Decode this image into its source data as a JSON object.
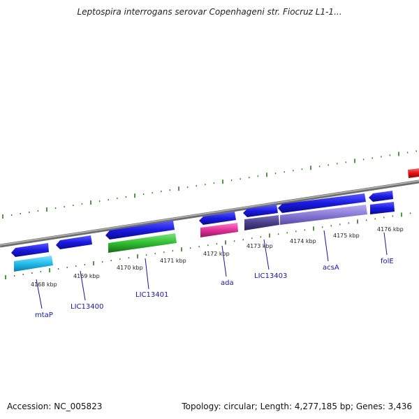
{
  "title": "Leptospira interrogans serovar Copenhageni str. Fiocruz L1-1...",
  "footer": {
    "accession": "Accession: NC_005823",
    "summary": "Topology: circular; Length: 4,277,185 bp; Genes: 3,436"
  },
  "kbp_labels": [
    "4168 kbp",
    "4169 kbp",
    "4170 kbp",
    "4171 kbp",
    "4172 kbp",
    "4173 kbp",
    "4174 kbp",
    "4175 kbp",
    "4176 kbp"
  ],
  "gene_labels": [
    "mtaP",
    "LIC13400",
    "LIC13401",
    "ada",
    "LIC13403",
    "acsA",
    "folE"
  ],
  "colors": {
    "backbone": "#8a8a8a",
    "tick": "#2a7a1a",
    "cds": "#1a1ae0",
    "mtaP": "#22bde8",
    "LIC13401": "#2fbf2f",
    "ada": "#e0309a",
    "LIC13403": "#4a3f8a",
    "acsA": "#8a7ad8",
    "folE": "#1a1ae0",
    "red_feature": "#e01010",
    "label": "#1414a0"
  }
}
